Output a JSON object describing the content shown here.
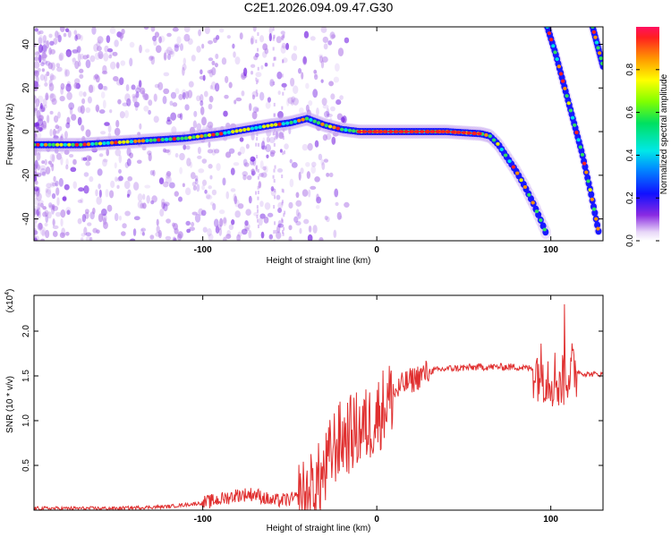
{
  "title": "C2E1.2026.094.09.47.G30",
  "chart_data": [
    {
      "type": "heatmap",
      "name": "spectrogram",
      "xlabel": "Height of straight line (km)",
      "ylabel": "Frequency (Hz)",
      "xlim": [
        -197,
        130
      ],
      "ylim": [
        -50,
        48
      ],
      "xticks": [
        -100,
        0,
        100
      ],
      "xtick_labels": [
        "-100",
        "0",
        "100"
      ],
      "yticks": [
        -40,
        -20,
        0,
        20,
        40
      ],
      "ytick_labels": [
        "-40",
        "-20",
        "0",
        "20",
        "40"
      ],
      "main_trace": {
        "x": [
          -197,
          -170,
          -150,
          -130,
          -110,
          -90,
          -75,
          -60,
          -50,
          -40,
          -30,
          -20,
          -10,
          0,
          20,
          40,
          60,
          65,
          70,
          75,
          80,
          85,
          90,
          95,
          98
        ],
        "y": [
          -6,
          -6,
          -5,
          -4,
          -3,
          -1,
          1,
          3,
          4,
          6,
          3,
          1,
          0,
          0,
          0,
          0,
          -1,
          -2,
          -6,
          -12,
          -18,
          -25,
          -33,
          -42,
          -48
        ]
      },
      "branch_1": {
        "x": [
          98,
          103,
          108,
          113,
          118,
          123,
          128
        ],
        "y": [
          48,
          35,
          20,
          5,
          -10,
          -28,
          -48
        ]
      },
      "branch_2": {
        "x": [
          124,
          126,
          128,
          130
        ],
        "y": [
          48,
          42,
          36,
          30
        ]
      },
      "colorbar": {
        "label": "Normalized spectral amplitude",
        "range": [
          0,
          1
        ],
        "ticks": [
          0.0,
          0.2,
          0.4,
          0.6,
          0.8
        ],
        "tick_labels": [
          "0.0",
          "0.2",
          "0.4",
          "0.6",
          "0.8"
        ]
      }
    },
    {
      "type": "line",
      "name": "snr",
      "xlabel": "Height of straight line (km)",
      "ylabel": "SNR (10 * v/v)",
      "multiplier_label": "(x10",
      "multiplier_exp": "4",
      "multiplier_close": ")",
      "xlim": [
        -197,
        130
      ],
      "ylim": [
        0,
        2.4
      ],
      "xticks": [
        -100,
        0,
        100
      ],
      "xtick_labels": [
        "-100",
        "0",
        "100"
      ],
      "yticks": [
        0.5,
        1.0,
        1.5,
        2.0
      ],
      "ytick_labels": [
        "0.5",
        "1.0",
        "1.5",
        "2.0"
      ],
      "color": "#e03030",
      "series": {
        "name": "SNR",
        "envelope": {
          "x": [
            -197,
            -150,
            -120,
            -100,
            -90,
            -80,
            -70,
            -60,
            -50,
            -40,
            -30,
            -25,
            -20,
            -15,
            -10,
            -5,
            0,
            5,
            10,
            15,
            20,
            30,
            40,
            60,
            80,
            90,
            95,
            100,
            105,
            110,
            115,
            120,
            130
          ],
          "y": [
            0.02,
            0.02,
            0.04,
            0.08,
            0.12,
            0.17,
            0.18,
            0.1,
            0.12,
            0.15,
            0.4,
            0.7,
            0.8,
            0.85,
            0.9,
            0.95,
            1.05,
            1.2,
            1.3,
            1.4,
            1.45,
            1.55,
            1.58,
            1.6,
            1.6,
            1.58,
            1.55,
            1.5,
            1.45,
            1.55,
            1.55,
            1.52,
            1.52
          ]
        }
      }
    }
  ]
}
